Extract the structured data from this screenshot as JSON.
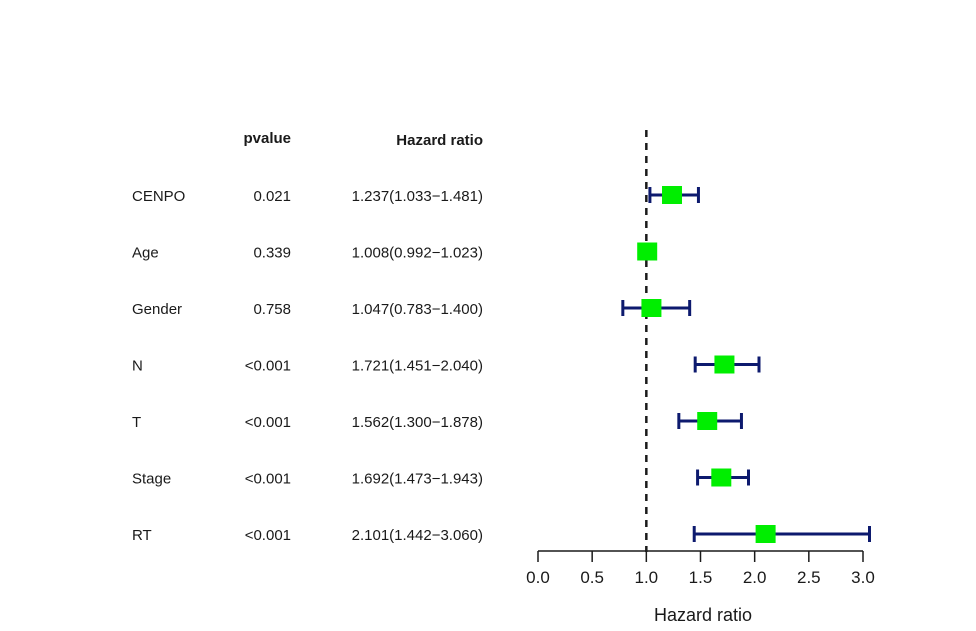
{
  "chart_data": {
    "type": "forest",
    "headers": {
      "pvalue": "pvalue",
      "hr": "Hazard ratio"
    },
    "rows": [
      {
        "label": "CENPO",
        "pvalue": "0.021",
        "hr_text": "1.237(1.033−1.481)",
        "hr": 1.237,
        "lo": 1.033,
        "hi": 1.481
      },
      {
        "label": "Age",
        "pvalue": "0.339",
        "hr_text": "1.008(0.992−1.023)",
        "hr": 1.008,
        "lo": 0.992,
        "hi": 1.023
      },
      {
        "label": "Gender",
        "pvalue": "0.758",
        "hr_text": "1.047(0.783−1.400)",
        "hr": 1.047,
        "lo": 0.783,
        "hi": 1.4
      },
      {
        "label": "N",
        "pvalue": "<0.001",
        "hr_text": "1.721(1.451−2.040)",
        "hr": 1.721,
        "lo": 1.451,
        "hi": 2.04
      },
      {
        "label": "T",
        "pvalue": "<0.001",
        "hr_text": "1.562(1.300−1.878)",
        "hr": 1.562,
        "lo": 1.3,
        "hi": 1.878
      },
      {
        "label": "Stage",
        "pvalue": "<0.001",
        "hr_text": "1.692(1.473−1.943)",
        "hr": 1.692,
        "lo": 1.473,
        "hi": 1.943
      },
      {
        "label": "RT",
        "pvalue": "<0.001",
        "hr_text": "2.101(1.442−3.060)",
        "hr": 2.101,
        "lo": 1.442,
        "hi": 3.06
      }
    ],
    "xlabel": "Hazard ratio",
    "xlim": [
      0,
      3.0
    ],
    "xticks": [
      "0.0",
      "0.5",
      "1.0",
      "1.5",
      "2.0",
      "2.5",
      "3.0"
    ],
    "reference_line": 1.0,
    "colors": {
      "box": "#00ee00",
      "ci": "#0d1a6e",
      "ref": "#1a1a1a"
    }
  }
}
